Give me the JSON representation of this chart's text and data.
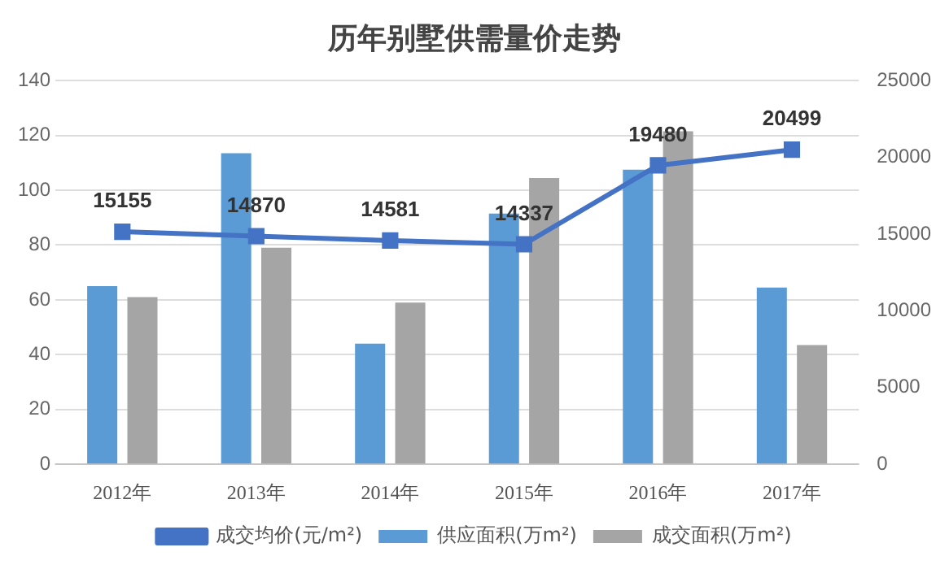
{
  "chart_data": {
    "type": "bar",
    "title": "历年别墅供需量价走势",
    "categories": [
      "2012年",
      "2013年",
      "2014年",
      "2015年",
      "2016年",
      "2017年"
    ],
    "series": [
      {
        "name": "供应面积(万m²)",
        "color": "#5b9bd5",
        "values": [
          65,
          113.5,
          44,
          91.5,
          107.5,
          64.5
        ]
      },
      {
        "name": "成交面积(万m²)",
        "color": "#a5a5a5",
        "values": [
          61,
          79,
          59,
          104.5,
          121.5,
          43.5
        ]
      },
      {
        "name": "成交均价(元/m²)",
        "type": "line",
        "axis": "y2",
        "color": "#4472c4",
        "values": [
          15155,
          14870,
          14581,
          14337,
          19480,
          20499
        ],
        "value_labels": [
          "15155",
          "14870",
          "14581",
          "14337",
          "19480",
          "20499"
        ]
      }
    ],
    "ylim": [
      0,
      140
    ],
    "yticks": [
      0,
      20,
      40,
      60,
      80,
      100,
      120,
      140
    ],
    "y2lim": [
      0,
      25000
    ],
    "y2ticks": [
      0,
      5000,
      10000,
      15000,
      20000,
      25000
    ],
    "grid": "y",
    "legend": "bottom",
    "marker": "square"
  }
}
